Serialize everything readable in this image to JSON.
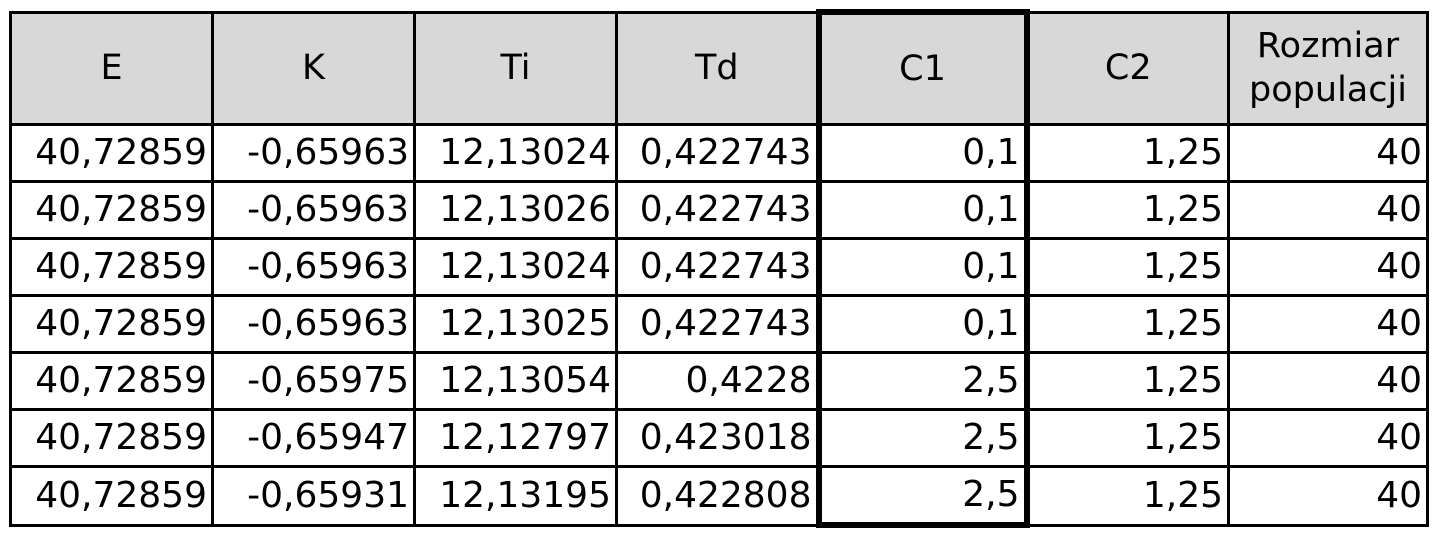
{
  "table": {
    "headers": [
      "E",
      "K",
      "Ti",
      "Td",
      "C1",
      "C2",
      "Rozmiar populacji"
    ],
    "rows": [
      [
        "40,72859",
        "-0,65963",
        "12,13024",
        "0,422743",
        "0,1",
        "1,25",
        "40"
      ],
      [
        "40,72859",
        "-0,65963",
        "12,13026",
        "0,422743",
        "0,1",
        "1,25",
        "40"
      ],
      [
        "40,72859",
        "-0,65963",
        "12,13024",
        "0,422743",
        "0,1",
        "1,25",
        "40"
      ],
      [
        "40,72859",
        "-0,65963",
        "12,13025",
        "0,422743",
        "0,1",
        "1,25",
        "40"
      ],
      [
        "40,72859",
        "-0,65975",
        "12,13054",
        "0,4228",
        "2,5",
        "1,25",
        "40"
      ],
      [
        "40,72859",
        "-0,65947",
        "12,12797",
        "0,423018",
        "2,5",
        "1,25",
        "40"
      ],
      [
        "40,72859",
        "-0,65931",
        "12,13195",
        "0,422808",
        "2,5",
        "1,25",
        "40"
      ]
    ]
  },
  "colors": {
    "header_background": "#d8d8d8",
    "grid_lines": "#000000"
  }
}
